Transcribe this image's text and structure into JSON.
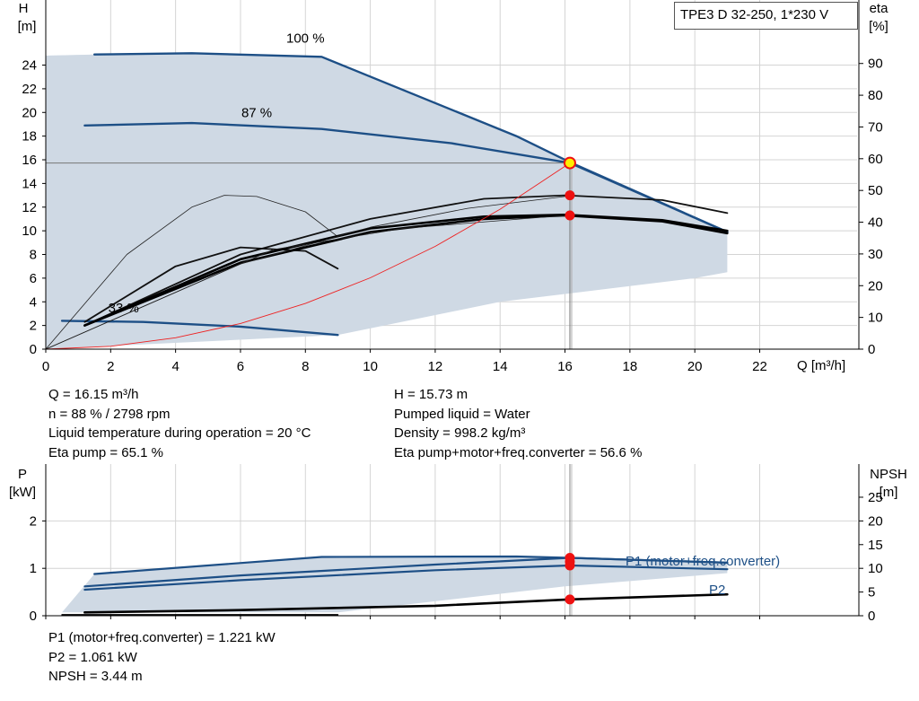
{
  "title": "TPE3 D 32-250, 1*230 V",
  "info": {
    "left": [
      "Q = 16.15 m³/h",
      "n = 88 % / 2798 rpm",
      "Liquid temperature during operation = 20 °C",
      "Eta pump = 65.1 %"
    ],
    "right": [
      "H = 15.73 m",
      "Pumped liquid = Water",
      "Density = 998.2 kg/m³",
      "Eta pump+motor+freq.converter = 56.6 %"
    ],
    "bottom": [
      "P1 (motor+freq.converter) = 1.221 kW",
      "P2 = 1.061 kW",
      "NPSH = 3.44 m"
    ]
  },
  "colors": {
    "curve_blue": "#1d4f86",
    "area_fill": "#cfd9e4",
    "area_light": "#e7eef6",
    "grid": "#d4d4d4",
    "marker_red": "#ee1111",
    "marker_yellow": "#ffee00",
    "system_curve": "#ee2222"
  },
  "chart_data": [
    {
      "type": "line",
      "name": "head-chart",
      "xlabel": "Q [m³/h]",
      "ylabel_left": [
        "H",
        "[m]"
      ],
      "ylabel_right": [
        "eta",
        "[%]"
      ],
      "xlim": [
        0,
        25
      ],
      "ylim_left": [
        0,
        29.5
      ],
      "ylim_right": [
        0,
        110
      ],
      "x_ticks": [
        0,
        2,
        4,
        6,
        8,
        10,
        12,
        14,
        16,
        18,
        20,
        22
      ],
      "y_ticks_left": [
        0,
        2,
        4,
        6,
        8,
        10,
        12,
        14,
        16,
        18,
        20,
        22,
        24
      ],
      "y_ticks_right": [
        0,
        10,
        20,
        30,
        40,
        50,
        60,
        70,
        80,
        90
      ],
      "grid": true,
      "operating_area": {
        "upper": [
          [
            0,
            24.8
          ],
          [
            1.5,
            24.9
          ],
          [
            4.5,
            25.0
          ],
          [
            8.5,
            24.7
          ],
          [
            14.5,
            18.0
          ],
          [
            16.15,
            15.8
          ],
          [
            21.0,
            9.9
          ]
        ],
        "lower": [
          [
            21.0,
            6.5
          ],
          [
            20.0,
            6.0
          ],
          [
            14.0,
            4.0
          ],
          [
            9.0,
            1.2
          ],
          [
            0,
            0
          ]
        ]
      },
      "series": [
        {
          "label": "100 %",
          "axis": "left",
          "weight": "bold",
          "points": [
            [
              1.5,
              24.9
            ],
            [
              4.5,
              25.0
            ],
            [
              8.5,
              24.7
            ],
            [
              14.5,
              18.0
            ],
            [
              16.15,
              15.8
            ],
            [
              21.0,
              9.9
            ]
          ]
        },
        {
          "label": "87 %",
          "axis": "left",
          "weight": "bold",
          "points": [
            [
              1.2,
              18.9
            ],
            [
              4.5,
              19.1
            ],
            [
              8.5,
              18.6
            ],
            [
              12.5,
              17.4
            ],
            [
              16.15,
              15.73
            ],
            [
              21.0,
              9.9
            ]
          ]
        },
        {
          "label": "33 %",
          "axis": "left",
          "weight": "bold",
          "points": [
            [
              0.5,
              2.4
            ],
            [
              3.0,
              2.3
            ],
            [
              6.0,
              1.9
            ],
            [
              9.0,
              1.2
            ]
          ]
        },
        {
          "axis": "left",
          "weight": "thin",
          "points": [
            [
              0,
              0
            ],
            [
              2.5,
              8.0
            ],
            [
              4.5,
              12.0
            ],
            [
              5.5,
              13.0
            ],
            [
              6.5,
              12.9
            ],
            [
              8.0,
              11.6
            ],
            [
              9.0,
              9.5
            ]
          ]
        },
        {
          "axis": "left",
          "weight": "medium",
          "points": [
            [
              1.2,
              2.3
            ],
            [
              4.0,
              7.0
            ],
            [
              6.0,
              8.6
            ],
            [
              8.0,
              8.3
            ],
            [
              9.0,
              6.8
            ]
          ]
        },
        {
          "axis": "left",
          "weight": "medium",
          "points": [
            [
              1.2,
              2.0
            ],
            [
              6.0,
              8.0
            ],
            [
              10.0,
              11.0
            ],
            [
              13.5,
              12.7
            ],
            [
              16.0,
              13.0
            ],
            [
              19.0,
              12.6
            ],
            [
              21.0,
              11.5
            ]
          ]
        },
        {
          "axis": "left",
          "weight": "thick",
          "points": [
            [
              1.2,
              2.0
            ],
            [
              6.0,
              7.6
            ],
            [
              10.0,
              10.2
            ],
            [
              13.5,
              11.2
            ],
            [
              16.0,
              11.35
            ],
            [
              19.0,
              10.9
            ],
            [
              21.0,
              10.0
            ]
          ]
        },
        {
          "axis": "left",
          "weight": "thick",
          "points": [
            [
              1.2,
              2.0
            ],
            [
              6.0,
              7.3
            ],
            [
              10.0,
              9.9
            ],
            [
              13.5,
              11.0
            ],
            [
              16.0,
              11.3
            ],
            [
              19.0,
              10.8
            ],
            [
              21.0,
              9.8
            ]
          ]
        },
        {
          "axis": "left",
          "weight": "thin",
          "points": [
            [
              0,
              0
            ],
            [
              6.0,
              7.2
            ],
            [
              10.0,
              10.3
            ],
            [
              13.0,
              11.9
            ],
            [
              16.0,
              12.9
            ]
          ]
        },
        {
          "axis": "left",
          "weight": "thin",
          "points": [
            [
              0,
              0
            ],
            [
              7.0,
              8.4
            ],
            [
              11.0,
              10.2
            ],
            [
              16.0,
              11.3
            ]
          ]
        }
      ],
      "system_curve": [
        [
          0,
          0
        ],
        [
          2,
          0.24
        ],
        [
          4,
          0.96
        ],
        [
          6,
          2.17
        ],
        [
          8,
          3.86
        ],
        [
          10,
          6.03
        ],
        [
          12,
          8.68
        ],
        [
          14,
          11.82
        ],
        [
          16.15,
          15.73
        ]
      ],
      "operating_point": {
        "x": 16.15,
        "y": 15.73
      },
      "markers": [
        {
          "x": 16.15,
          "y": 13.0
        },
        {
          "x": 16.15,
          "y": 11.3
        }
      ]
    },
    {
      "type": "line",
      "name": "power-chart",
      "ylabel_left": [
        "P",
        "[kW]"
      ],
      "ylabel_right": [
        "NPSH",
        "[m]"
      ],
      "xlim": [
        0,
        25
      ],
      "ylim_left": [
        0,
        3.2
      ],
      "ylim_right": [
        0,
        32
      ],
      "x_ticks": [
        0,
        2,
        4,
        6,
        8,
        10,
        12,
        14,
        16,
        18,
        20,
        22
      ],
      "y_ticks_left": [
        0,
        1,
        2
      ],
      "y_ticks_right": [
        0,
        5,
        10,
        15,
        20,
        25
      ],
      "grid": true,
      "area": {
        "upper": [
          [
            1.5,
            0.88
          ],
          [
            8.5,
            1.24
          ],
          [
            14.5,
            1.25
          ],
          [
            21.0,
            1.1
          ]
        ],
        "lower": [
          [
            21.0,
            0.9
          ],
          [
            16.0,
            0.62
          ],
          [
            9.0,
            0.07
          ],
          [
            0.5,
            0.07
          ]
        ]
      },
      "series": [
        {
          "label": "P1 (motor+freq.converter)",
          "axis": "left",
          "weight": "blue",
          "points": [
            [
              1.5,
              0.88
            ],
            [
              8.5,
              1.24
            ],
            [
              14.5,
              1.25
            ],
            [
              16.15,
              1.221
            ],
            [
              21.0,
              1.12
            ]
          ]
        },
        {
          "axis": "left",
          "weight": "blue",
          "points": [
            [
              1.2,
              0.62
            ],
            [
              6.0,
              0.85
            ],
            [
              12.0,
              1.08
            ],
            [
              16.15,
              1.221
            ],
            [
              21.0,
              1.12
            ]
          ]
        },
        {
          "label": "P2",
          "axis": "left",
          "weight": "blue",
          "points": [
            [
              1.2,
              0.55
            ],
            [
              6.0,
              0.75
            ],
            [
              12.0,
              0.96
            ],
            [
              16.15,
              1.061
            ],
            [
              21.0,
              0.98
            ]
          ]
        },
        {
          "axis": "right",
          "weight": "black",
          "points": [
            [
              1.2,
              0.7
            ],
            [
              6.0,
              1.2
            ],
            [
              12.0,
              2.1
            ],
            [
              16.15,
              3.44
            ],
            [
              21.0,
              4.5
            ]
          ]
        },
        {
          "axis": "right",
          "weight": "black-thin",
          "points": [
            [
              0.5,
              0.2
            ],
            [
              9.0,
              0.2
            ]
          ]
        }
      ],
      "markers": [
        {
          "x": 16.15,
          "y": 1.221
        },
        {
          "x": 16.15,
          "y": 1.14
        },
        {
          "x": 16.15,
          "y": 1.061
        }
      ],
      "markers_right": [
        {
          "x": 16.15,
          "y": 3.44
        }
      ]
    }
  ]
}
